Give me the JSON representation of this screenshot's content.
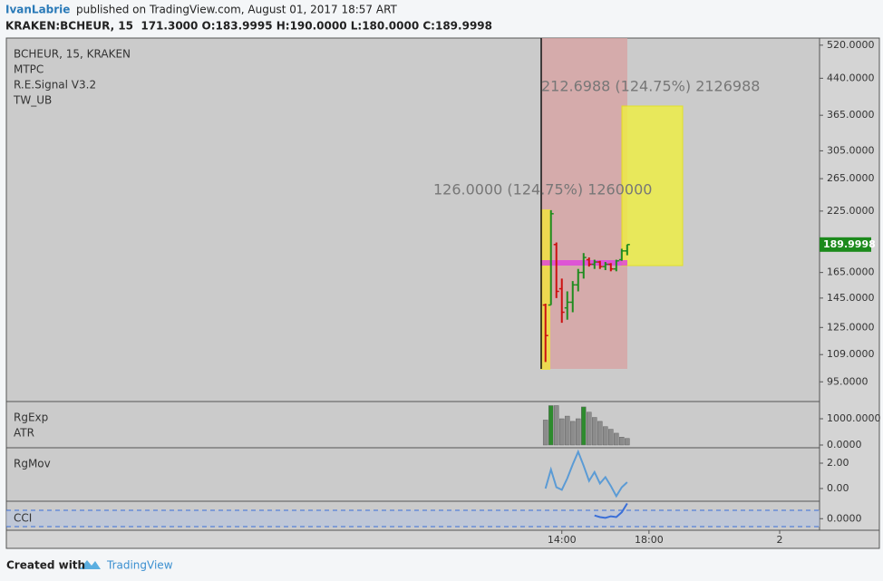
{
  "header": {
    "author": "IvanLabrie",
    "published": "published on TradingView.com, August 01, 2017 18:57 ART",
    "symbol_line": "KRAKEN:BCHEUR, 15  171.3000 O:183.9995 H:190.0000 L:180.0000 C:189.9998"
  },
  "chart_data": [
    {
      "type": "ohlc",
      "title": "BCHEUR, 15, KRAKEN",
      "indicators": [
        "MTPC",
        "R.E.Signal V3.2",
        "TW_UB"
      ],
      "x": [
        13.25,
        13.5,
        13.75,
        14,
        14.25,
        14.5,
        14.75,
        15,
        15.25,
        15.5,
        15.75,
        16,
        16.25,
        16.5,
        16.75,
        17
      ],
      "open": [
        140,
        140,
        190,
        152,
        138,
        142,
        155,
        165,
        176,
        172,
        174,
        170,
        172,
        168,
        176,
        184
      ],
      "high": [
        141,
        226,
        192,
        160,
        150,
        158,
        168,
        182,
        178,
        176,
        175,
        174,
        173,
        176,
        186,
        190
      ],
      "low": [
        105,
        140,
        145,
        128,
        130,
        135,
        150,
        160,
        170,
        168,
        168,
        167,
        166,
        166,
        175,
        180
      ],
      "close": [
        120,
        222,
        150,
        135,
        142,
        155,
        165,
        178,
        172,
        174,
        170,
        172,
        168,
        175,
        184,
        190
      ],
      "up_color": "#1e8c1e",
      "down_color": "#cc1010",
      "log_scale": true,
      "ylim": [
        86,
        539
      ],
      "yticks": [
        {
          "value": 520,
          "label": "520.0000"
        },
        {
          "value": 440,
          "label": "440.0000"
        },
        {
          "value": 365,
          "label": "365.0000"
        },
        {
          "value": 305,
          "label": "305.0000"
        },
        {
          "value": 265,
          "label": "265.0000"
        },
        {
          "value": 225,
          "label": "225.0000"
        },
        {
          "value": 165,
          "label": "165.0000"
        },
        {
          "value": 145,
          "label": "145.0000"
        },
        {
          "value": 125,
          "label": "125.0000"
        },
        {
          "value": 109,
          "label": "109.0000"
        },
        {
          "value": 95,
          "label": "95.0000"
        }
      ],
      "xlim": [
        -11.5,
        25.83
      ],
      "xticks": [
        {
          "value": 14,
          "label": "14:00"
        },
        {
          "value": 18,
          "label": "18:00"
        },
        {
          "value": 24,
          "label": "2"
        }
      ],
      "last_price": {
        "value": 189.9998,
        "label": "189.9998"
      },
      "annotations": [
        "212.6988 (124.75%) 2126988",
        "126.0000 (124.75%) 1260000"
      ]
    },
    {
      "type": "bar",
      "labels": [
        "RgExp",
        "ATR"
      ],
      "x": [
        13.25,
        13.5,
        13.75,
        14,
        14.25,
        14.5,
        14.75,
        15,
        15.25,
        15.5,
        15.75,
        16,
        16.25,
        16.5,
        16.75,
        17
      ],
      "values": [
        950,
        1500,
        1500,
        1000,
        1100,
        900,
        1000,
        1450,
        1250,
        1050,
        900,
        700,
        600,
        450,
        300,
        250
      ],
      "colors": [
        "#8c8c8c",
        "#2e8b2e",
        "#8c8c8c",
        "#8c8c8c",
        "#8c8c8c",
        "#8c8c8c",
        "#8c8c8c",
        "#2e8b2e",
        "#8c8c8c",
        "#8c8c8c",
        "#8c8c8c",
        "#8c8c8c",
        "#8c8c8c",
        "#8c8c8c",
        "#8c8c8c",
        "#8c8c8c"
      ],
      "ylim": [
        -35,
        1517
      ],
      "yticks": [
        {
          "value": 1000,
          "label": "1000.0000"
        },
        {
          "value": 0,
          "label": "0.0000"
        }
      ]
    },
    {
      "type": "line",
      "labels": [
        "RgMov"
      ],
      "color": "#5b9bd5",
      "x": [
        13.25,
        13.5,
        13.75,
        14,
        14.25,
        14.5,
        14.75,
        15,
        15.25,
        15.5,
        15.75,
        16,
        16.25,
        16.5,
        16.75,
        17
      ],
      "values": [
        0,
        1.5,
        0.1,
        -0.1,
        0.8,
        1.9,
        2.9,
        1.8,
        0.6,
        1.3,
        0.4,
        0.9,
        0.2,
        -0.6,
        0.1,
        0.5
      ],
      "ylim": [
        -0.93,
        3.0
      ],
      "yticks": [
        {
          "value": 2,
          "label": "2.00"
        },
        {
          "value": 0,
          "label": "0.00"
        }
      ]
    },
    {
      "type": "line",
      "labels": [
        "CCI"
      ],
      "color": "#3a6fd8",
      "x": [
        15.5,
        15.75,
        16,
        16.25,
        16.5,
        16.75,
        17
      ],
      "values": [
        40,
        20,
        10,
        30,
        20,
        80,
        190
      ],
      "ylim": [
        -144,
        195
      ],
      "yticks": [
        {
          "value": 0,
          "label": "0.0000"
        }
      ]
    }
  ],
  "footer": {
    "created": "Created with",
    "brand": "TradingView"
  }
}
